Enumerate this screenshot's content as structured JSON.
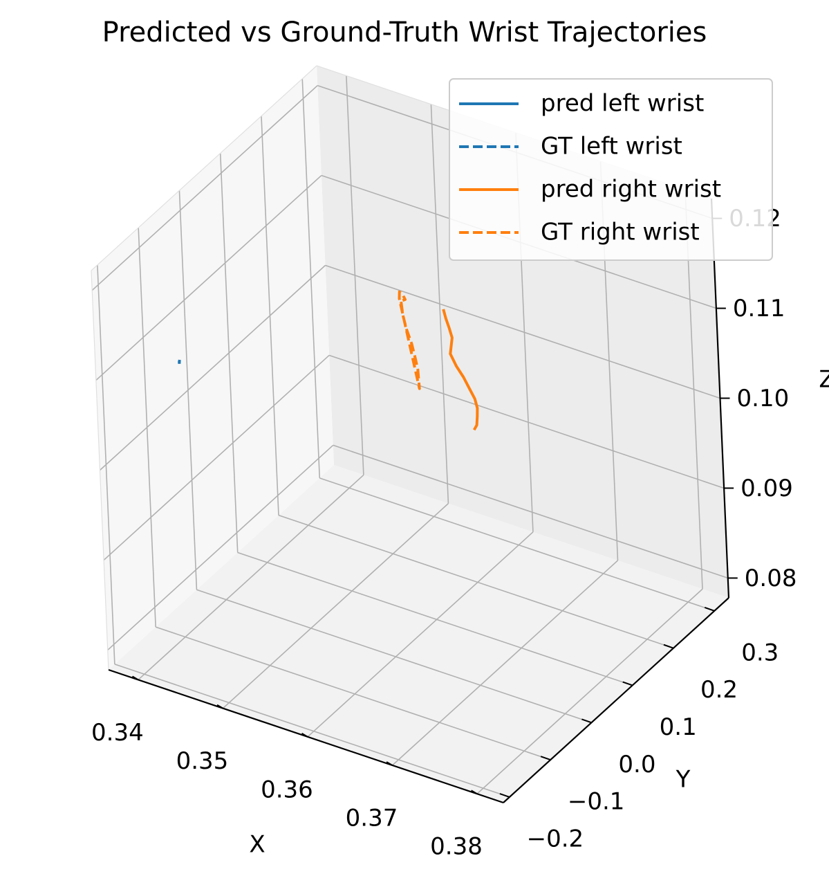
{
  "chart_data": {
    "type": "line",
    "projection": "3d",
    "title": "Predicted vs Ground-Truth Wrist Trajectories",
    "xlabel": "X",
    "ylabel": "Y",
    "zlabel": "Z",
    "xticks": [
      "0.34",
      "0.35",
      "0.36",
      "0.37",
      "0.38"
    ],
    "yticks": [
      "−0.2",
      "−0.1",
      "0.0",
      "0.1",
      "0.2",
      "0.3"
    ],
    "zticks": [
      "0.08",
      "0.09",
      "0.10",
      "0.11",
      "0.12"
    ],
    "xlim": [
      0.3365,
      0.3831
    ],
    "ylim": [
      -0.215,
      0.335
    ],
    "zlim": [
      0.0778,
      0.1222
    ],
    "grid": true,
    "legend_position": "top-right",
    "legend": [
      {
        "label": "pred left wrist",
        "color": "#1f77b4",
        "style": "solid"
      },
      {
        "label": "GT left wrist",
        "color": "#1f77b4",
        "style": "dashed"
      },
      {
        "label": "pred right wrist",
        "color": "#ff7f0e",
        "style": "solid"
      },
      {
        "label": "GT right wrist",
        "color": "#ff7f0e",
        "style": "dashed"
      }
    ],
    "series": [
      {
        "name": "pred left wrist",
        "color": "#1f77b4",
        "style": "solid",
        "x": [
          0.3431,
          0.3431,
          0.3431
        ],
        "y": [
          -0.147,
          -0.147,
          -0.146
        ],
        "z": [
          0.1111,
          0.1113,
          0.1115
        ]
      },
      {
        "name": "GT left wrist",
        "color": "#1f77b4",
        "style": "dashed",
        "x": [
          0.3431,
          0.3431,
          0.3431
        ],
        "y": [
          -0.147,
          -0.147,
          -0.147
        ],
        "z": [
          0.1112,
          0.1113,
          0.1114
        ]
      },
      {
        "name": "pred right wrist",
        "color": "#ff7f0e",
        "style": "solid",
        "x": [
          0.365,
          0.3652,
          0.3655,
          0.3658,
          0.3656,
          0.3654,
          0.366,
          0.3667,
          0.3673,
          0.3678,
          0.368,
          0.3679,
          0.3678,
          0.3674
        ],
        "y": [
          0.049,
          0.05,
          0.051,
          0.051,
          0.052,
          0.053,
          0.054,
          0.056,
          0.057,
          0.059,
          0.06,
          0.061,
          0.061,
          0.062
        ],
        "z": [
          0.116,
          0.115,
          0.114,
          0.113,
          0.112,
          0.111,
          0.1098,
          0.1087,
          0.1076,
          0.1065,
          0.1055,
          0.1045,
          0.1035,
          0.1028
        ]
      },
      {
        "name": "GT right wrist",
        "color": "#ff7f0e",
        "style": "dashed",
        "x": [
          0.3611,
          0.3612,
          0.3615,
          0.362,
          0.3623,
          0.3625,
          0.3625,
          0.3625,
          0.3609,
          0.3609,
          0.3612,
          0.3615,
          0.3612
        ],
        "y": [
          0.027,
          0.028,
          0.029,
          0.03,
          0.031,
          0.032,
          0.033,
          0.034,
          0.027,
          0.028,
          0.029,
          0.029,
          0.029
        ],
        "z": [
          0.1165,
          0.115,
          0.1135,
          0.112,
          0.1105,
          0.1092,
          0.108,
          0.107,
          0.1168,
          0.1175,
          0.1173,
          0.1168,
          0.1166
        ]
      }
    ]
  }
}
